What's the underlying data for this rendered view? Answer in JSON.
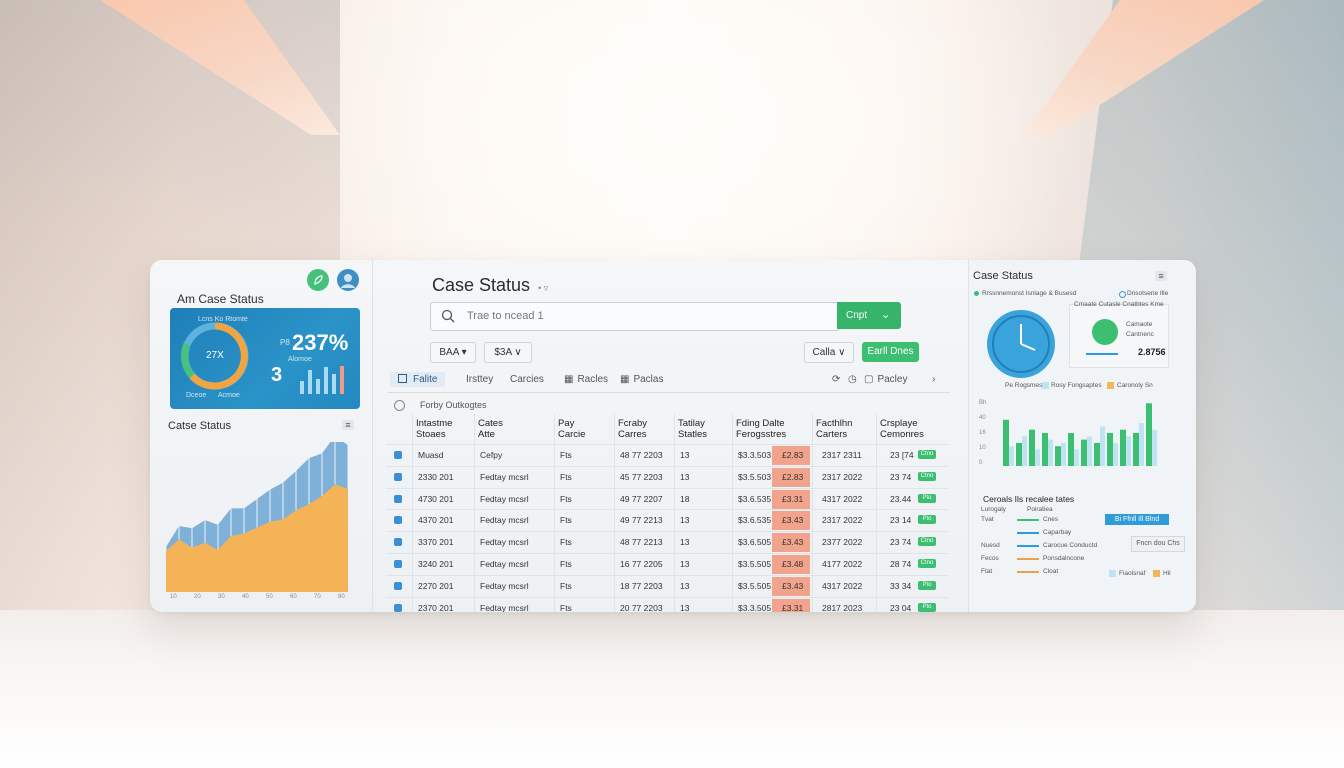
{
  "left": {
    "title": "Am Case Status",
    "kpi": {
      "gauge_value": "27X",
      "gauge_left_label": "Dceoe",
      "gauge_right_label": "Acmoe",
      "top_small": "Lcns Ko Rtomte",
      "pct_prefix": "P8",
      "pct": "237%",
      "pct_sub": "Alomoe",
      "big_number": "3",
      "bars": [
        0.45,
        0.85,
        0.55,
        0.95,
        0.7,
        1.0
      ]
    },
    "chart_title": "Catse Status",
    "area_chart": {
      "orange": [
        0.35,
        0.45,
        0.38,
        0.42,
        0.36,
        0.48,
        0.5,
        0.55,
        0.6,
        0.62,
        0.7,
        0.75,
        0.82,
        0.92,
        0.88
      ],
      "blue": [
        0.12,
        0.2,
        0.25,
        0.28,
        0.3,
        0.32,
        0.3,
        0.33,
        0.36,
        0.4,
        0.42,
        0.48,
        0.45,
        0.5,
        0.46
      ]
    },
    "x_ticks": [
      "10",
      "20",
      "30",
      "40",
      "50",
      "60",
      "70",
      "80"
    ]
  },
  "middle": {
    "title": "Case Status",
    "title_suffix": "• ▿",
    "search_placeholder": "Trae to ncead 1",
    "search_button": "Cnpt",
    "filters": [
      {
        "label": "BAA ▾"
      },
      {
        "label": "$3A ∨"
      }
    ],
    "right_chip": "Calla ∨",
    "green_button": "Earll Dnes",
    "tabs": [
      "Falite",
      "Irsttey",
      "Carcies",
      "Racles",
      "Paclas"
    ],
    "tab_right": "Pacley",
    "table_note": "Forby Outkogtes",
    "headers": [
      [
        "Intastme",
        "Stoaes"
      ],
      [
        "Cates",
        "Atte"
      ],
      [
        "Pay",
        "Carcie"
      ],
      [
        "Fcraby",
        "Carres"
      ],
      [
        "Tatilay",
        "Statles"
      ],
      [
        "Fding Dalte",
        "Ferogsstres"
      ],
      [
        "Facthlhn",
        "Carters"
      ],
      [
        "Crsplaye",
        "Cemonres"
      ]
    ],
    "rows": [
      [
        "Muasd",
        "Cefpy",
        "Fts",
        "48 77 2203",
        "13",
        "$3.3.503",
        "£2.83",
        "2317 2311",
        "23 [74",
        "Ctno"
      ],
      [
        "2330 201",
        "Fedtay mcsrl",
        "Fts",
        "45 77 2203",
        "13",
        "$3.5.503",
        "£2.83",
        "2317 2022",
        "23 74",
        "Ctno"
      ],
      [
        "4730 201",
        "Fedtay mcsrl",
        "Fts",
        "49 77 2207",
        "18",
        "$3.6.535",
        "£3.31",
        "4317 2022",
        "23.44",
        "Pto"
      ],
      [
        "4370 201",
        "Fedtay mcsrl",
        "Fts",
        "49 77 2213",
        "13",
        "$3.6.535",
        "£3.43",
        "2317 2022",
        "23 14",
        "Pto"
      ],
      [
        "3370 201",
        "Fedtay mcsrl",
        "Fts",
        "48 77 2213",
        "13",
        "$3.6.505",
        "£3.43",
        "2377 2022",
        "23 74",
        "Ctno"
      ],
      [
        "3240 201",
        "Fedtay mcsrl",
        "Fts",
        "16 77 2205",
        "13",
        "$3.5.505",
        "£3.48",
        "4177 2022",
        "28 74",
        "Ctno"
      ],
      [
        "2270 201",
        "Fedtay mcsrl",
        "Fts",
        "18 77 2203",
        "13",
        "$3.5.505",
        "£3.43",
        "4317 2022",
        "33 34",
        "Pto"
      ],
      [
        "2370 201",
        "Fedtay mcsrl",
        "Fts",
        "20 77 2203",
        "13",
        "$3.3.505",
        "£3.31",
        "2817 2023",
        "23 04",
        "Pto"
      ]
    ]
  },
  "right": {
    "title": "Case Status",
    "legend_top_left": "Rrssnnemonst Isnlage & Busesd",
    "legend_top_right": "Dnsotsene Ille",
    "card_label_top": "Cmaate Cutasle Cnatbtes Kme",
    "card_label_mid": "Camaote",
    "card_label_sub": "Cantnenc",
    "card_value": "2.8756",
    "chart_legend": [
      "Pe Rogsmes",
      "Rosy Fongsaptes",
      "Caronoly Sn"
    ],
    "y_ticks": [
      "Bh",
      "40",
      "16",
      "10",
      "0"
    ],
    "bars_green": [
      0.7,
      0.35,
      0.55,
      0.5,
      0.3,
      0.5,
      0.4,
      0.35,
      0.5,
      0.55,
      0.5,
      0.95
    ],
    "bars_light": [
      0.3,
      0.45,
      0.25,
      0.4,
      0.35,
      0.25,
      0.45,
      0.6,
      0.35,
      0.45,
      0.65,
      0.55
    ],
    "list_title": "Ceroals Ils recalee tates",
    "list_header": [
      "Lurogaly",
      "Poiratiea"
    ],
    "list_items": [
      {
        "left": "Tvat",
        "label": "Cnes",
        "color": "#3cbf70"
      },
      {
        "left": "",
        "label": "Caparbay",
        "color": "#2f9cd8"
      },
      {
        "left": "Nuesd",
        "label": "Carocue Conductd",
        "color": "#2f9cd8"
      },
      {
        "left": "Fecos",
        "label": "Ponsdalncone",
        "color": "#e9a24a"
      },
      {
        "left": "Ftat",
        "label": "Cloat",
        "color": "#e9a24a"
      }
    ],
    "blue_button": "Bi Ffnll Ill Blnd",
    "ghost_button": "Fncn dou Chs",
    "bottom_legend": [
      "Fiaolsnaf",
      "Hil"
    ]
  }
}
